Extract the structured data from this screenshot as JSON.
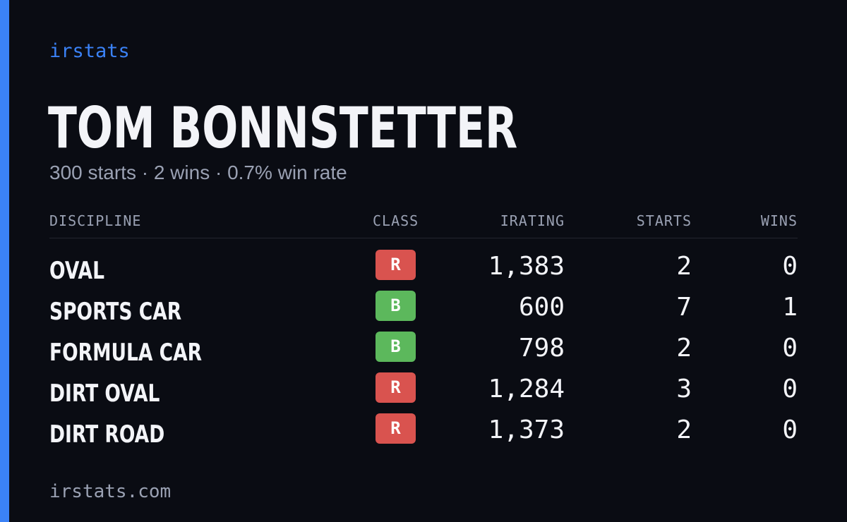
{
  "brand": "irstats",
  "player": {
    "name": "TOM BONNSTETTER",
    "summary": "300 starts · 2 wins · 0.7% win rate"
  },
  "table": {
    "headers": {
      "discipline": "DISCIPLINE",
      "class": "CLASS",
      "irating": "IRATING",
      "starts": "STARTS",
      "wins": "WINS"
    },
    "rows": [
      {
        "discipline": "OVAL",
        "class": "R",
        "irating": "1,383",
        "starts": "2",
        "wins": "0"
      },
      {
        "discipline": "SPORTS CAR",
        "class": "B",
        "irating": "600",
        "starts": "7",
        "wins": "1"
      },
      {
        "discipline": "FORMULA CAR",
        "class": "B",
        "irating": "798",
        "starts": "2",
        "wins": "0"
      },
      {
        "discipline": "DIRT OVAL",
        "class": "R",
        "irating": "1,284",
        "starts": "3",
        "wins": "0"
      },
      {
        "discipline": "DIRT ROAD",
        "class": "R",
        "irating": "1,373",
        "starts": "2",
        "wins": "0"
      }
    ]
  },
  "class_colors": {
    "R": "#d9534f",
    "B": "#5cb85c"
  },
  "accent_color": "#3b82f6",
  "footer": "irstats.com"
}
